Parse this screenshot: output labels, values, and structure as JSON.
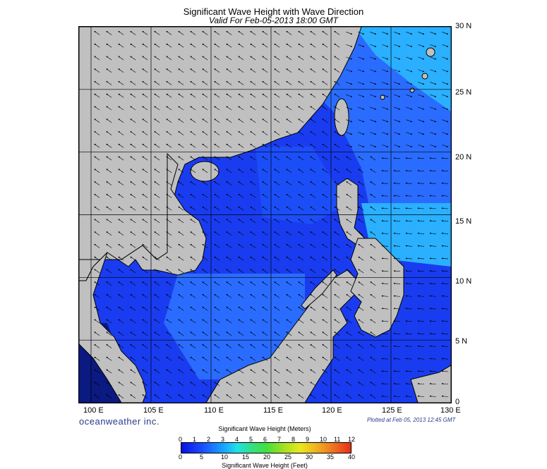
{
  "title": "Significant Wave Height with Wave Direction",
  "subtitle": "Valid For Feb-05-2013 18:00 GMT",
  "lat_labels": [
    "30 N",
    "25 N",
    "20 N",
    "15 N",
    "10 N",
    "5 N",
    "0"
  ],
  "lon_labels": [
    "100 E",
    "105 E",
    "110 E",
    "115 E",
    "120 E",
    "125 E",
    "130 E"
  ],
  "brand": "oceanweather inc.",
  "plotted": "Plotted at Feb 05, 2013 12:45 GMT",
  "legend": {
    "meters_title": "Significant Wave Height (Meters)",
    "feet_title": "Significant Wave Height (Feet)",
    "meters_ticks": [
      "0",
      "1",
      "2",
      "3",
      "4",
      "5",
      "6",
      "7",
      "8",
      "9",
      "10",
      "11",
      "12"
    ],
    "feet_ticks": [
      "0",
      "5",
      "10",
      "15",
      "20",
      "25",
      "30",
      "35",
      "40"
    ]
  },
  "colors": {
    "land": "#c0c0c0",
    "sea_low": "#1a3cf0",
    "sea_mid": "#2a6cff",
    "sea_high": "#2ab0ff"
  },
  "map": {
    "extent": {
      "lon": [
        99,
        130
      ],
      "lat": [
        0,
        30
      ]
    },
    "grid_step_deg": 5,
    "arrow_step_deg": 1
  }
}
